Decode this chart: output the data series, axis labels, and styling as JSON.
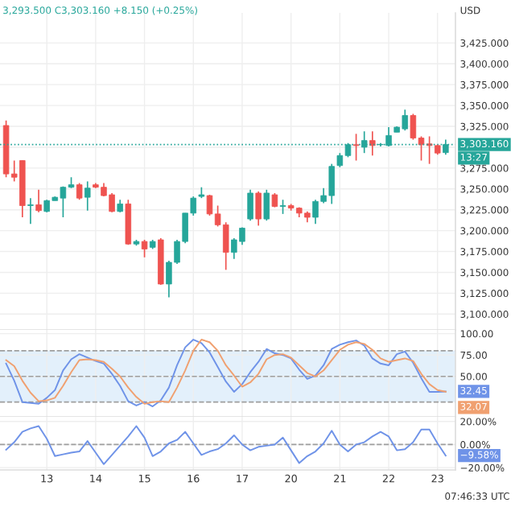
{
  "chart_data": [
    {
      "type": "candlestick",
      "subtitle": "3,293.500 C3,303.160 +8.150 (+0.25%)",
      "ylabel": "USD",
      "annotations": [
        "13:27"
      ],
      "categories": [
        null,
        null,
        null,
        null,
        null,
        "13",
        null,
        null,
        null,
        null,
        null,
        "14",
        null,
        null,
        null,
        null,
        null,
        "15",
        null,
        null,
        null,
        null,
        null,
        "16",
        null,
        null,
        null,
        null,
        null,
        "17",
        null,
        null,
        null,
        null,
        null,
        "20",
        null,
        null,
        null,
        null,
        null,
        "21",
        null,
        null,
        null,
        null,
        null,
        "22",
        null,
        null,
        null,
        null,
        null,
        "23",
        null
      ],
      "ohlc": [
        [
          3326,
          3332,
          3264,
          3268
        ],
        [
          3268,
          3284,
          3259,
          3264
        ],
        [
          3284,
          3284,
          3216,
          3230
        ],
        [
          3230,
          3239,
          3208,
          3231
        ],
        [
          3231,
          3249,
          3222,
          3224
        ],
        [
          3223,
          3237,
          3222,
          3236
        ],
        [
          3236,
          3241,
          3236,
          3240
        ],
        [
          3239,
          3253,
          3216,
          3252
        ],
        [
          3252,
          3264,
          3251,
          3255
        ],
        [
          3255,
          3257,
          3237,
          3239
        ],
        [
          3240,
          3259,
          3224,
          3251
        ],
        [
          3255,
          3257,
          3251,
          3252
        ],
        [
          3252,
          3257,
          3241,
          3242
        ],
        [
          3243,
          3245,
          3222,
          3223
        ],
        [
          3223,
          3237,
          3222,
          3232
        ],
        [
          3232,
          3237,
          3183,
          3184
        ],
        [
          3184,
          3189,
          3182,
          3187
        ],
        [
          3187,
          3189,
          3168,
          3178
        ],
        [
          3180,
          3189,
          3178,
          3187
        ],
        [
          3189,
          3191,
          3135,
          3136
        ],
        [
          3136,
          3164,
          3120,
          3162
        ],
        [
          3162,
          3189,
          3160,
          3187
        ],
        [
          3187,
          3221,
          3185,
          3221
        ],
        [
          3221,
          3241,
          3218,
          3239
        ],
        [
          3241,
          3252,
          3239,
          3243
        ],
        [
          3242,
          3243,
          3218,
          3220
        ],
        [
          3220,
          3230,
          3205,
          3207
        ],
        [
          3207,
          3210,
          3153,
          3174
        ],
        [
          3174,
          3191,
          3166,
          3189
        ],
        [
          3187,
          3204,
          3183,
          3203
        ],
        [
          3214,
          3249,
          3212,
          3245
        ],
        [
          3245,
          3247,
          3206,
          3214
        ],
        [
          3214,
          3249,
          3212,
          3245
        ],
        [
          3243,
          3245,
          3228,
          3229
        ],
        [
          3229,
          3237,
          3220,
          3230
        ],
        [
          3230,
          3232,
          3224,
          3227
        ],
        [
          3227,
          3228,
          3216,
          3221
        ],
        [
          3221,
          3223,
          3210,
          3216
        ],
        [
          3216,
          3237,
          3208,
          3235
        ],
        [
          3235,
          3251,
          3233,
          3242
        ],
        [
          3242,
          3280,
          3232,
          3277
        ],
        [
          3278,
          3293,
          3276,
          3290
        ],
        [
          3290,
          3305,
          3288,
          3303
        ],
        [
          3303,
          3316,
          3284,
          3302
        ],
        [
          3300,
          3319,
          3293,
          3308
        ],
        [
          3308,
          3319,
          3290,
          3302
        ],
        [
          3303,
          3305,
          3301,
          3303
        ],
        [
          3302,
          3324,
          3301,
          3314
        ],
        [
          3318,
          3325,
          3318,
          3324
        ],
        [
          3322,
          3345,
          3320,
          3338
        ],
        [
          3338,
          3340,
          3309,
          3311
        ],
        [
          3311,
          3313,
          3284,
          3303
        ],
        [
          3304,
          3313,
          3280,
          3302
        ],
        [
          3302,
          3303,
          3291,
          3293
        ],
        [
          3293.5,
          3309,
          3291,
          3303.16
        ]
      ],
      "colors": [
        "#ef5350",
        "#ef5350",
        "#ef5350",
        "#26a69a",
        "#ef5350",
        "#26a69a",
        "#26a69a",
        "#26a69a",
        "#26a69a",
        "#ef5350",
        "#26a69a",
        "#ef5350",
        "#ef5350",
        "#ef5350",
        "#26a69a",
        "#ef5350",
        "#26a69a",
        "#ef5350",
        "#26a69a",
        "#ef5350",
        "#26a69a",
        "#26a69a",
        "#26a69a",
        "#26a69a",
        "#26a69a",
        "#ef5350",
        "#ef5350",
        "#ef5350",
        "#26a69a",
        "#26a69a",
        "#26a69a",
        "#ef5350",
        "#26a69a",
        "#ef5350",
        "#26a69a",
        "#ef5350",
        "#ef5350",
        "#ef5350",
        "#26a69a",
        "#26a69a",
        "#26a69a",
        "#26a69a",
        "#26a69a",
        "#ef5350",
        "#26a69a",
        "#ef5350",
        "#26a69a",
        "#26a69a",
        "#26a69a",
        "#26a69a",
        "#ef5350",
        "#ef5350",
        "#ef5350",
        "#ef5350",
        "#26a69a"
      ],
      "ylim": [
        3081,
        3461
      ],
      "yticks": [
        {
          "value": 3100,
          "label": "3,100.000"
        },
        {
          "value": 3125,
          "label": "3,125.000"
        },
        {
          "value": 3150,
          "label": "3,150.000"
        },
        {
          "value": 3175,
          "label": "3,175.000"
        },
        {
          "value": 3200,
          "label": "3,200.000"
        },
        {
          "value": 3225,
          "label": "3,225.000"
        },
        {
          "value": 3250,
          "label": "3,250.000"
        },
        {
          "value": 3275,
          "label": "3,275.000"
        },
        {
          "value": 3300,
          "label": null
        },
        {
          "value": 3325,
          "label": "3,325.000"
        },
        {
          "value": 3350,
          "label": "3,350.000"
        },
        {
          "value": 3375,
          "label": "3,375.000"
        },
        {
          "value": 3400,
          "label": "3,400.000"
        },
        {
          "value": 3425,
          "label": "3,425.000"
        }
      ],
      "ref_lines": [
        {
          "axis": "y",
          "value": 3303.16,
          "label": "3,303.160",
          "color": "#26a69a",
          "line_style": "dotted"
        }
      ],
      "tick_labels": "y",
      "grid": true,
      "legend": false
    },
    {
      "type": "line",
      "marker": "none",
      "line_style": "solid",
      "legend": false,
      "grid": true,
      "tick_labels": "y",
      "categories": [
        null,
        null,
        null,
        null,
        null,
        "13",
        null,
        null,
        null,
        null,
        null,
        "14",
        null,
        null,
        null,
        null,
        null,
        "15",
        null,
        null,
        null,
        null,
        null,
        "16",
        null,
        null,
        null,
        null,
        null,
        "17",
        null,
        null,
        null,
        null,
        null,
        "20",
        null,
        null,
        null,
        null,
        null,
        "21",
        null,
        null,
        null,
        null,
        null,
        "22",
        null,
        null,
        null,
        null,
        null,
        "23",
        null
      ],
      "ylim": [
        2.8,
        104.3
      ],
      "yticks": [
        {
          "value": 50,
          "label": "50.00"
        },
        {
          "value": 75,
          "label": "75.00"
        },
        {
          "value": 100,
          "label": "100.00"
        }
      ],
      "bands": [
        {
          "axis": "y",
          "from": 20,
          "to": 80,
          "color": "#e3f0fb"
        }
      ],
      "ref_lines": [
        {
          "axis": "y",
          "value": 80,
          "color": "#9e9e9e",
          "line_style": "dashed"
        },
        {
          "axis": "y",
          "value": 50,
          "color": "#9e9e9e",
          "line_style": "dashed"
        },
        {
          "axis": "y",
          "value": 20,
          "color": "#9e9e9e",
          "line_style": "dashed"
        }
      ],
      "series": [
        {
          "color": "#6f93e8",
          "values": [
            65,
            45,
            20,
            19,
            18,
            25,
            34,
            57,
            70,
            76,
            72,
            68,
            65,
            53,
            39,
            21,
            16,
            20,
            15,
            22,
            37,
            63,
            84,
            93,
            89,
            78,
            61,
            44,
            32,
            41,
            55,
            67,
            82,
            77,
            75,
            71,
            58,
            47,
            51,
            63,
            82,
            87,
            90,
            92,
            86,
            71,
            65,
            63,
            76,
            79,
            66,
            48,
            32,
            32,
            32.45
          ],
          "value_labels": [
            null,
            null,
            null,
            null,
            null,
            null,
            null,
            null,
            null,
            null,
            null,
            null,
            null,
            null,
            null,
            null,
            null,
            null,
            null,
            null,
            null,
            null,
            null,
            null,
            null,
            null,
            null,
            null,
            null,
            null,
            null,
            null,
            null,
            null,
            null,
            null,
            null,
            null,
            null,
            null,
            null,
            null,
            null,
            null,
            null,
            null,
            null,
            null,
            null,
            null,
            null,
            null,
            null,
            null,
            "32.45"
          ]
        },
        {
          "color": "#f0a070",
          "values": [
            69,
            62,
            45,
            31,
            21,
            22,
            25,
            39,
            55,
            69,
            70,
            69,
            67,
            59,
            50,
            37,
            26,
            18,
            20,
            21,
            20,
            37,
            57,
            80,
            93,
            90,
            80,
            63,
            51,
            38,
            43,
            53,
            70,
            75,
            76,
            72,
            63,
            54,
            50,
            57,
            69,
            81,
            87,
            90,
            88,
            81,
            71,
            67,
            69,
            71,
            68,
            53,
            41,
            34,
            32.07
          ],
          "value_labels": [
            null,
            null,
            null,
            null,
            null,
            null,
            null,
            null,
            null,
            null,
            null,
            null,
            null,
            null,
            null,
            null,
            null,
            null,
            null,
            null,
            null,
            null,
            null,
            null,
            null,
            null,
            null,
            null,
            null,
            null,
            null,
            null,
            null,
            null,
            null,
            null,
            null,
            null,
            null,
            null,
            null,
            null,
            null,
            null,
            null,
            null,
            null,
            null,
            null,
            null,
            null,
            null,
            null,
            null,
            "32.07"
          ]
        }
      ]
    },
    {
      "type": "line",
      "marker": "none",
      "line_style": "solid",
      "legend": false,
      "grid": true,
      "annotations": [
        "07:46:33 UTC"
      ],
      "categories": [
        null,
        null,
        null,
        null,
        null,
        "13",
        null,
        null,
        null,
        null,
        null,
        "14",
        null,
        null,
        null,
        null,
        null,
        "15",
        null,
        null,
        null,
        null,
        null,
        "16",
        null,
        null,
        null,
        null,
        null,
        "17",
        null,
        null,
        null,
        null,
        null,
        "20",
        null,
        null,
        null,
        null,
        null,
        "21",
        null,
        null,
        null,
        null,
        null,
        "22",
        null,
        null,
        null,
        null,
        null,
        "23",
        null
      ],
      "ylim": [
        -22,
        24
      ],
      "yticks": [
        {
          "value": -20,
          "label": "−20.00%"
        },
        {
          "value": 0,
          "label": "0.00%"
        },
        {
          "value": 20,
          "label": "20.00%"
        }
      ],
      "ref_lines": [
        {
          "axis": "y",
          "value": 0,
          "color": "#9e9e9e",
          "line_style": "dashed"
        }
      ],
      "series": [
        {
          "color": "#6f93e8",
          "values": [
            -4.5,
            2,
            11,
            14,
            16,
            5,
            -10,
            -8.5,
            -7,
            -6,
            3,
            -7,
            -17,
            -9,
            -1,
            7,
            16,
            6,
            -10,
            -6,
            1,
            4,
            11,
            1,
            -9,
            -6,
            -4,
            1,
            8,
            0,
            -5,
            -2,
            -1,
            0,
            6,
            -5,
            -16,
            -10,
            -6,
            1,
            12,
            0,
            -6,
            0,
            2,
            7,
            11,
            7,
            -5,
            -4,
            2,
            13,
            13,
            1,
            -9.58
          ],
          "value_labels": [
            null,
            null,
            null,
            null,
            null,
            null,
            null,
            null,
            null,
            null,
            null,
            null,
            null,
            null,
            null,
            null,
            null,
            null,
            null,
            null,
            null,
            null,
            null,
            null,
            null,
            null,
            null,
            null,
            null,
            null,
            null,
            null,
            null,
            null,
            null,
            null,
            null,
            null,
            null,
            null,
            null,
            null,
            null,
            null,
            null,
            null,
            null,
            null,
            null,
            null,
            null,
            null,
            null,
            null,
            "−9.58%"
          ]
        }
      ]
    }
  ]
}
